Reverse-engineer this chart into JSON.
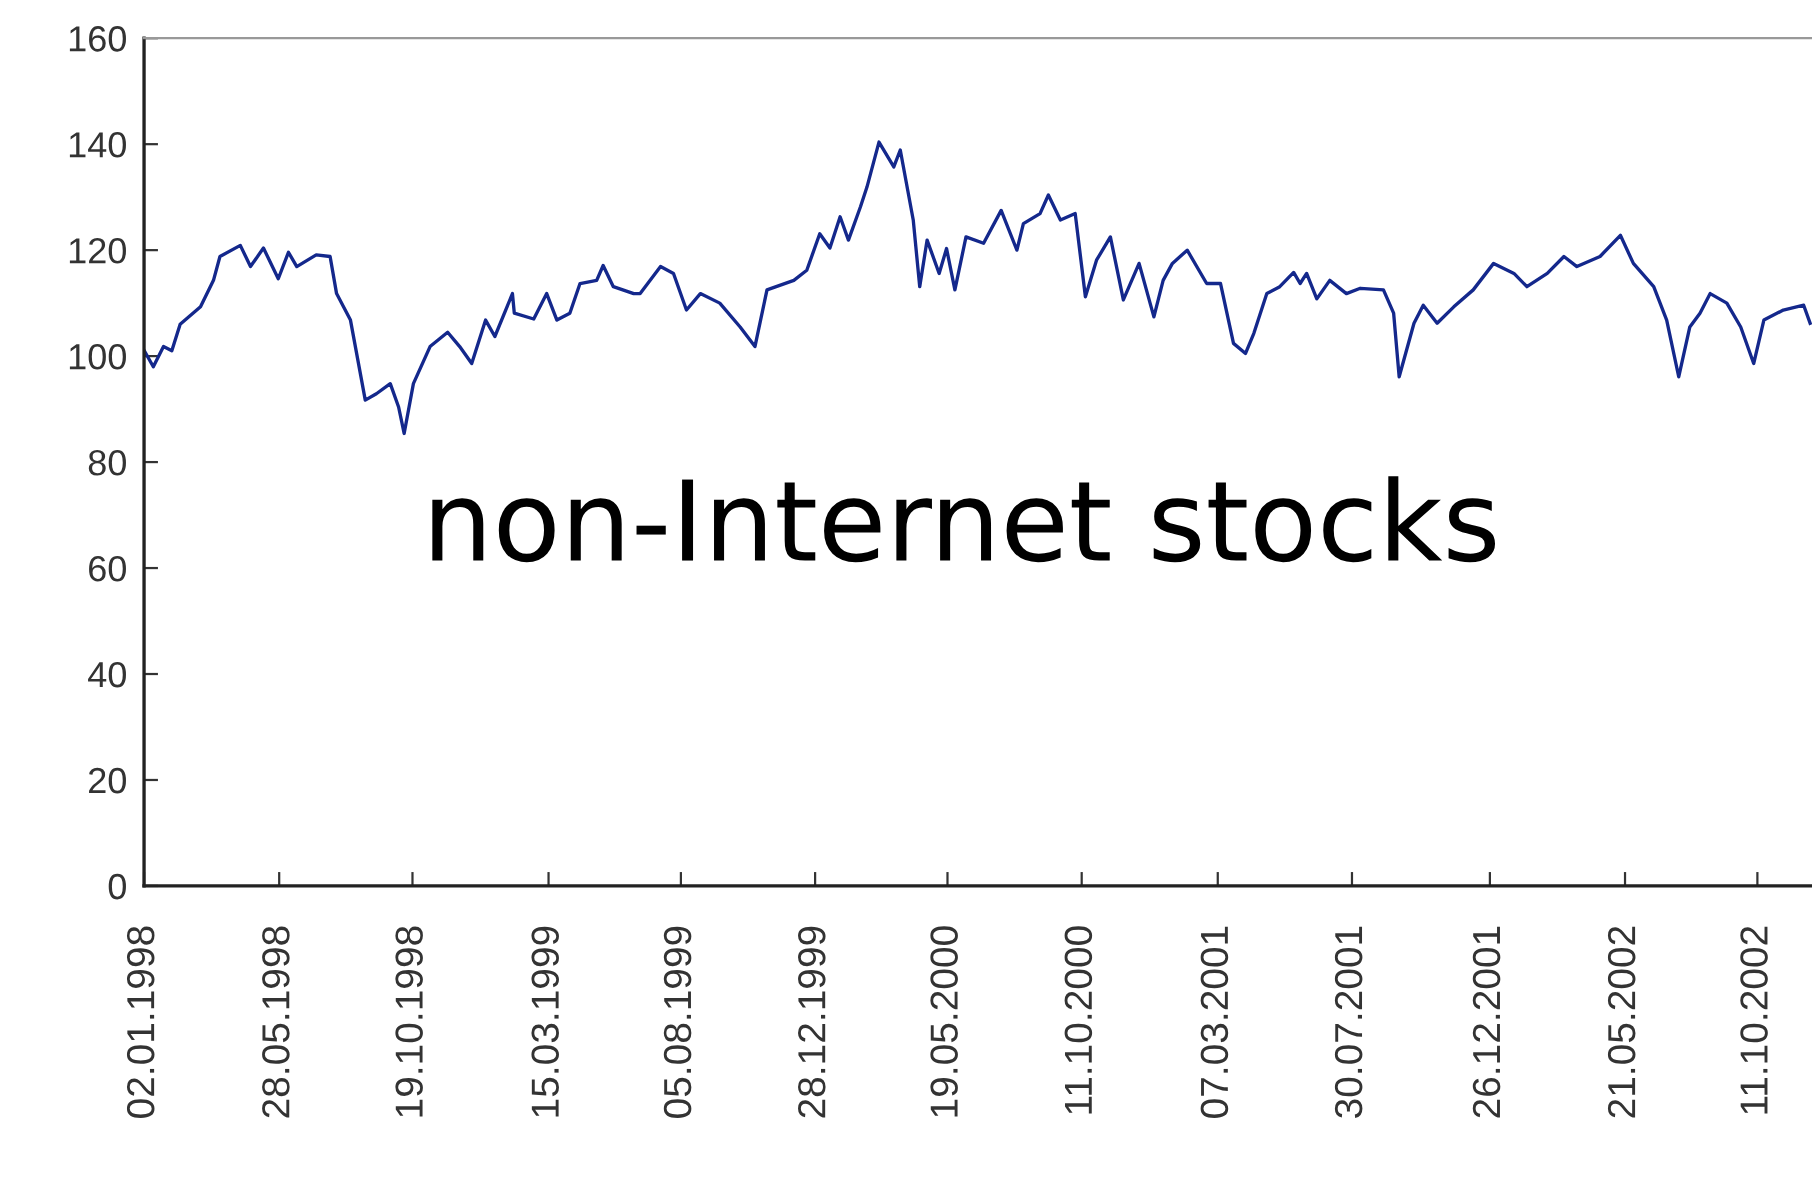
{
  "chart_data": {
    "type": "line",
    "annotations": [
      "non-Internet stocks"
    ],
    "x": [
      "1998-01-02",
      "1998-01-12",
      "1998-01-23",
      "1998-02-01",
      "1998-02-10",
      "1998-03-04",
      "1998-03-18",
      "1998-03-25",
      "1998-04-16",
      "1998-04-27",
      "1998-05-11",
      "1998-05-27",
      "1998-06-07",
      "1998-06-16",
      "1998-07-07",
      "1998-07-22",
      "1998-07-29",
      "1998-08-13",
      "1998-08-29",
      "1998-09-10",
      "1998-09-25",
      "1998-10-04",
      "1998-10-10",
      "1998-10-20",
      "1998-11-07",
      "1998-11-26",
      "1998-12-09",
      "1998-12-22",
      "1999-01-06",
      "1999-01-16",
      "1999-02-04",
      "1999-02-06",
      "1999-02-27",
      "1999-03-13",
      "1999-03-24",
      "1999-04-07",
      "1999-04-18",
      "1999-05-06",
      "1999-05-13",
      "1999-05-24",
      "1999-06-15",
      "1999-06-22",
      "1999-07-14",
      "1999-07-28",
      "1999-08-11",
      "1999-08-26",
      "1999-09-16",
      "1999-10-08",
      "1999-10-24",
      "1999-11-06",
      "1999-12-05",
      "1999-12-19",
      "2000-01-02",
      "2000-01-13",
      "2000-01-24",
      "2000-02-02",
      "2000-02-15",
      "2000-02-22",
      "2000-03-06",
      "2000-03-22",
      "2000-03-29",
      "2000-04-12",
      "2000-04-19",
      "2000-04-27",
      "2000-05-10",
      "2000-05-18",
      "2000-05-27",
      "2000-06-08",
      "2000-06-27",
      "2000-07-16",
      "2000-08-02",
      "2000-08-09",
      "2000-08-27",
      "2000-09-05",
      "2000-09-18",
      "2000-10-04",
      "2000-10-15",
      "2000-10-27",
      "2000-11-11",
      "2000-11-25",
      "2000-12-12",
      "2000-12-28",
      "2001-01-07",
      "2001-01-17",
      "2001-02-02",
      "2001-02-23",
      "2001-03-10",
      "2001-03-24",
      "2001-04-06",
      "2001-04-15",
      "2001-04-29",
      "2001-05-13",
      "2001-05-28",
      "2001-06-04",
      "2001-06-11",
      "2001-06-22",
      "2001-07-06",
      "2001-07-24",
      "2001-08-08",
      "2001-09-02",
      "2001-09-13",
      "2001-09-19",
      "2001-10-05",
      "2001-10-15",
      "2001-10-30",
      "2001-11-17",
      "2001-12-08",
      "2001-12-30",
      "2002-01-21",
      "2002-02-04",
      "2002-02-26",
      "2002-03-16",
      "2002-03-30",
      "2002-04-24",
      "2002-05-16",
      "2002-05-30",
      "2002-06-21",
      "2002-07-05",
      "2002-07-18",
      "2002-07-30",
      "2002-08-10",
      "2002-08-21",
      "2002-09-08",
      "2002-09-23",
      "2002-10-07",
      "2002-10-18",
      "2002-11-08",
      "2002-11-30",
      "2002-12-07"
    ],
    "series": [
      {
        "color": "#14288c",
        "values": [
          101.1,
          98,
          101.8,
          101,
          106,
          109.3,
          114.3,
          118.8,
          120.9,
          116.9,
          120.4,
          114.6,
          119.6,
          116.9,
          119.1,
          118.8,
          111.8,
          106.8,
          91.7,
          92.9,
          94.8,
          90.4,
          85.4,
          94.8,
          101.8,
          104.5,
          101.8,
          98.6,
          106.8,
          103.7,
          111.8,
          108.1,
          107,
          111.8,
          106.8,
          108.1,
          113.7,
          114.3,
          117.1,
          113.1,
          111.8,
          111.8,
          116.9,
          115.6,
          108.7,
          111.8,
          110,
          105.5,
          101.8,
          112.5,
          114.3,
          116.2,
          123.1,
          120.4,
          126.3,
          121.9,
          128.2,
          131.9,
          140.4,
          135.7,
          138.9,
          125.7,
          113.1,
          121.9,
          115.6,
          120.3,
          112.5,
          122.5,
          121.3,
          127.5,
          120,
          125,
          126.9,
          130.4,
          125.7,
          126.9,
          111.2,
          118.1,
          122.5,
          110.6,
          117.5,
          107.4,
          114.3,
          117.5,
          120,
          113.7,
          113.7,
          102.4,
          100.5,
          104.3,
          111.8,
          113.1,
          115.8,
          113.7,
          115.6,
          110.8,
          114.3,
          111.8,
          112.8,
          112.5,
          108.1,
          96.1,
          106.2,
          109.6,
          106.2,
          109.3,
          112.5,
          117.5,
          115.6,
          113.1,
          115.6,
          118.8,
          116.9,
          118.8,
          122.8,
          117.5,
          113.1,
          106.8,
          96.1,
          105.5,
          108.1,
          111.8,
          110,
          105.5,
          98.6,
          106.8,
          108.7,
          109.6,
          106.2
        ]
      }
    ],
    "xlim": [
      "1998-01-02",
      "2002-12-09"
    ],
    "xticks": [
      {
        "value": "1998-01-02",
        "label": "02.01.1998"
      },
      {
        "value": "1998-05-28",
        "label": "28.05.1998"
      },
      {
        "value": "1998-10-19",
        "label": "19.10.1998"
      },
      {
        "value": "1999-03-15",
        "label": "15.03.1999"
      },
      {
        "value": "1999-08-05",
        "label": "05.08.1999"
      },
      {
        "value": "1999-12-28",
        "label": "28.12.1999"
      },
      {
        "value": "2000-05-19",
        "label": "19.05.2000"
      },
      {
        "value": "2000-10-11",
        "label": "11.10.2000"
      },
      {
        "value": "2001-03-07",
        "label": "07.03.2001"
      },
      {
        "value": "2001-07-30",
        "label": "30.07.2001"
      },
      {
        "value": "2001-12-26",
        "label": "26.12.2001"
      },
      {
        "value": "2002-05-21",
        "label": "21.05.2002"
      },
      {
        "value": "2002-10-11",
        "label": "11.10.2002"
      }
    ],
    "ylim": [
      0,
      160
    ],
    "yticks": [
      0,
      20,
      40,
      60,
      80,
      100,
      120,
      140,
      160
    ],
    "grid": false,
    "legend": false,
    "marker": "none",
    "line_style": "solid"
  }
}
